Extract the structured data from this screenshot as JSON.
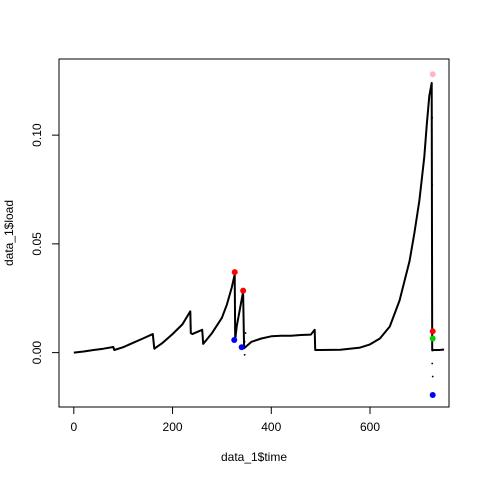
{
  "chart_data": {
    "type": "scatter",
    "title": "",
    "xlabel": "data_1$time",
    "ylabel": "data_1$load",
    "xlim": [
      -30,
      760
    ],
    "ylim": [
      -0.025,
      0.135
    ],
    "x_ticks": [
      0,
      200,
      400,
      600
    ],
    "x_tick_labels": [
      "0",
      "200",
      "400",
      "600"
    ],
    "y_ticks": [
      0.0,
      0.05,
      0.1
    ],
    "y_tick_labels": [
      "0.00",
      "0.05",
      "0.10"
    ],
    "grid": false,
    "series_trace": {
      "color": "#000000",
      "x": [
        0,
        20,
        40,
        60,
        80,
        82,
        100,
        120,
        140,
        160,
        163,
        180,
        200,
        220,
        236,
        237,
        240,
        260,
        262,
        280,
        300,
        310,
        320,
        326,
        327,
        330,
        338,
        343,
        345,
        360,
        380,
        400,
        420,
        440,
        460,
        480,
        488,
        489,
        500,
        540,
        580,
        600,
        620,
        640,
        660,
        680,
        690,
        700,
        710,
        715,
        720,
        725,
        726,
        730,
        740,
        748,
        750
      ],
      "y": [
        0.0,
        0.0005,
        0.0012,
        0.0018,
        0.0026,
        0.0012,
        0.0025,
        0.0045,
        0.0065,
        0.0085,
        0.0018,
        0.0045,
        0.0085,
        0.013,
        0.019,
        0.009,
        0.0085,
        0.0105,
        0.004,
        0.009,
        0.016,
        0.022,
        0.03,
        0.036,
        0.006,
        0.012,
        0.022,
        0.028,
        0.002,
        0.005,
        0.0065,
        0.0075,
        0.0078,
        0.0078,
        0.0081,
        0.0083,
        0.0105,
        0.0012,
        0.0012,
        0.0013,
        0.0023,
        0.0038,
        0.0065,
        0.012,
        0.024,
        0.042,
        0.055,
        0.07,
        0.09,
        0.105,
        0.118,
        0.124,
        0.001,
        0.0012,
        0.0012,
        0.0014,
        0.0014
      ]
    },
    "series_scatter": {
      "color": "#000000",
      "x": [
        346,
        346,
        348,
        726,
        726,
        726,
        726,
        726,
        727
      ],
      "y": [
        -0.001,
        0.005,
        0.009,
        0.108,
        0.077,
        0.041,
        0.014,
        -0.005,
        -0.011
      ]
    },
    "highlight_points": [
      {
        "x": 326,
        "y": 0.037,
        "color": "#ff0000"
      },
      {
        "x": 343,
        "y": 0.0285,
        "color": "#ff0000"
      },
      {
        "x": 325,
        "y": 0.0058,
        "color": "#0000ff"
      },
      {
        "x": 340,
        "y": 0.0025,
        "color": "#0000ff"
      },
      {
        "x": 727,
        "y": 0.128,
        "color": "#ffb6c1"
      },
      {
        "x": 727,
        "y": 0.0098,
        "color": "#ff0000"
      },
      {
        "x": 727,
        "y": 0.0065,
        "color": "#00cc00"
      },
      {
        "x": 727,
        "y": -0.0195,
        "color": "#0000ff"
      }
    ]
  }
}
